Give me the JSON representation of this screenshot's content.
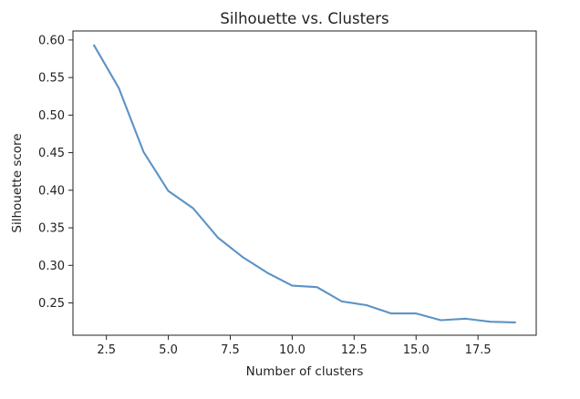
{
  "chart_data": {
    "type": "line",
    "title": "Silhouette vs. Clusters",
    "xlabel": "Number of clusters",
    "ylabel": "Silhouette score",
    "xlim": [
      1.15,
      19.85
    ],
    "ylim": [
      0.207,
      0.612
    ],
    "xticks": [
      2.5,
      5.0,
      7.5,
      10.0,
      12.5,
      15.0,
      17.5
    ],
    "xtick_labels": [
      "2.5",
      "5.0",
      "7.5",
      "10.0",
      "12.5",
      "15.0",
      "17.5"
    ],
    "yticks": [
      0.25,
      0.3,
      0.35,
      0.4,
      0.45,
      0.5,
      0.55,
      0.6
    ],
    "ytick_labels": [
      "0.25",
      "0.30",
      "0.35",
      "0.40",
      "0.45",
      "0.50",
      "0.55",
      "0.60"
    ],
    "grid": false,
    "color": "#5b93c5",
    "x": [
      2,
      3,
      4,
      5,
      6,
      7,
      8,
      9,
      10,
      11,
      12,
      13,
      14,
      15,
      16,
      17,
      18,
      19
    ],
    "y": [
      0.593,
      0.536,
      0.451,
      0.399,
      0.376,
      0.337,
      0.311,
      0.29,
      0.273,
      0.271,
      0.252,
      0.247,
      0.236,
      0.236,
      0.227,
      0.229,
      0.225,
      0.224
    ]
  }
}
